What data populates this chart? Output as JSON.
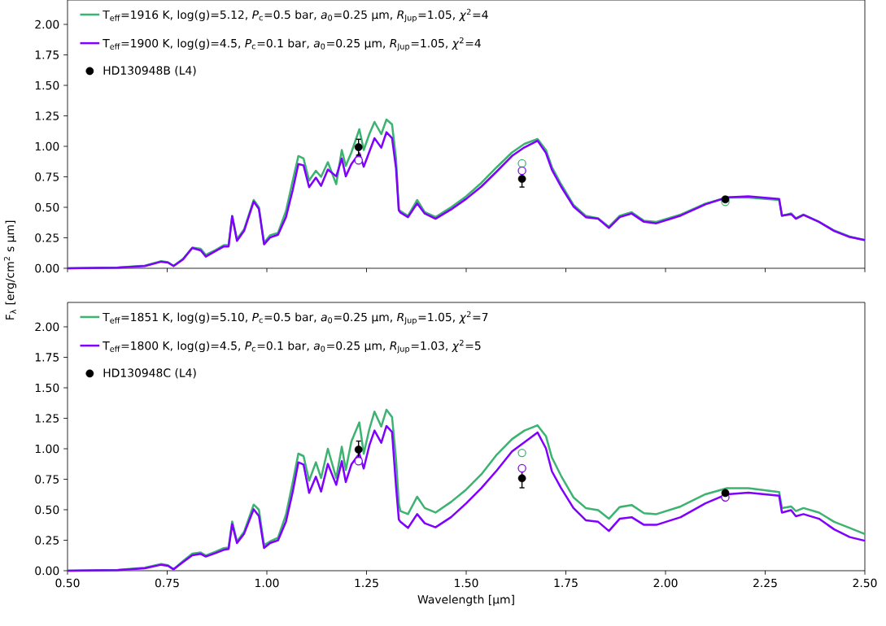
{
  "chart_data": [
    {
      "type": "line",
      "legend": "top left",
      "tick_labels": "y",
      "xlim": [
        0.5,
        2.5
      ],
      "ylim": [
        0,
        2.2
      ],
      "xticks": [
        {
          "value": 0.5,
          "label": null
        },
        {
          "value": 0.75,
          "label": null
        },
        {
          "value": 1.0,
          "label": null
        },
        {
          "value": 1.25,
          "label": null
        },
        {
          "value": 1.5,
          "label": null
        },
        {
          "value": 1.75,
          "label": null
        },
        {
          "value": 2.0,
          "label": null
        },
        {
          "value": 2.25,
          "label": null
        },
        {
          "value": 2.5,
          "label": null
        }
      ],
      "yticks": [
        {
          "value": 0,
          "label": "0.00"
        },
        {
          "value": 0.25,
          "label": "0.25"
        },
        {
          "value": 0.5,
          "label": "0.50"
        },
        {
          "value": 0.75,
          "label": "0.75"
        },
        {
          "value": 1.0,
          "label": "1.00"
        },
        {
          "value": 1.25,
          "label": "1.25"
        },
        {
          "value": 1.5,
          "label": "1.50"
        },
        {
          "value": 1.75,
          "label": "1.75"
        },
        {
          "value": 2.0,
          "label": "2.00"
        }
      ],
      "x": [
        0.5,
        0.626,
        0.694,
        0.735,
        0.752,
        0.766,
        0.79,
        0.813,
        0.834,
        0.847,
        0.871,
        0.892,
        0.904,
        0.913,
        0.925,
        0.943,
        0.967,
        0.98,
        0.993,
        1.008,
        1.028,
        1.048,
        1.065,
        1.079,
        1.092,
        1.106,
        1.123,
        1.136,
        1.153,
        1.174,
        1.188,
        1.198,
        1.212,
        1.232,
        1.243,
        1.257,
        1.27,
        1.287,
        1.3,
        1.314,
        1.324,
        1.331,
        1.335,
        1.354,
        1.377,
        1.396,
        1.423,
        1.462,
        1.5,
        1.538,
        1.577,
        1.615,
        1.646,
        1.679,
        1.7,
        1.715,
        1.738,
        1.769,
        1.8,
        1.831,
        1.858,
        1.885,
        1.915,
        1.946,
        1.977,
        2.038,
        2.1,
        2.154,
        2.208,
        2.285,
        2.292,
        2.315,
        2.327,
        2.346,
        2.385,
        2.423,
        2.462,
        2.5
      ],
      "series": [
        {
          "name": "T$_{eff}$=1916 K, log(g)=5.12, *P*$_{c}$=0.5 bar, *a*$_{0}$=0.25 μm, *R*$_{Jup}$=1.05, *χ*$^{2}$=4",
          "marker": "none",
          "line_style": "solid",
          "color": "#3cb371",
          "values": [
            0,
            0.007,
            0.022,
            0.058,
            0.05,
            0.02,
            0.078,
            0.17,
            0.16,
            0.11,
            0.15,
            0.19,
            0.19,
            0.43,
            0.24,
            0.32,
            0.56,
            0.5,
            0.21,
            0.27,
            0.29,
            0.47,
            0.72,
            0.92,
            0.9,
            0.72,
            0.8,
            0.75,
            0.87,
            0.69,
            0.97,
            0.84,
            0.95,
            1.14,
            0.97,
            1.1,
            1.2,
            1.1,
            1.22,
            1.18,
            0.9,
            0.48,
            0.47,
            0.43,
            0.56,
            0.46,
            0.42,
            0.5,
            0.59,
            0.7,
            0.83,
            0.95,
            1.02,
            1.06,
            0.97,
            0.83,
            0.69,
            0.52,
            0.43,
            0.41,
            0.34,
            0.43,
            0.46,
            0.39,
            0.38,
            0.44,
            0.53,
            0.58,
            0.58,
            0.56,
            0.43,
            0.45,
            0.41,
            0.44,
            0.38,
            0.31,
            0.26,
            0.23
          ]
        },
        {
          "name": "T$_{eff}$=1900 K, log(g)=4.5, *P*$_{c}$=0.1 bar, *a*$_{0}$=0.25 μm, *R*$_{Jup}$=1.05, *χ*$^{2}$=4",
          "marker": "none",
          "line_style": "solid",
          "color": "#8000ff",
          "values": [
            0,
            0.005,
            0.018,
            0.054,
            0.047,
            0.018,
            0.074,
            0.167,
            0.147,
            0.096,
            0.141,
            0.179,
            0.179,
            0.426,
            0.225,
            0.308,
            0.547,
            0.487,
            0.196,
            0.252,
            0.275,
            0.42,
            0.643,
            0.855,
            0.844,
            0.665,
            0.743,
            0.676,
            0.81,
            0.754,
            0.9,
            0.754,
            0.855,
            0.944,
            0.833,
            0.955,
            1.067,
            0.989,
            1.116,
            1.067,
            0.821,
            0.475,
            0.457,
            0.419,
            0.532,
            0.449,
            0.406,
            0.482,
            0.569,
            0.67,
            0.795,
            0.921,
            0.991,
            1.046,
            0.946,
            0.808,
            0.67,
            0.507,
            0.419,
            0.406,
            0.331,
            0.419,
            0.449,
            0.381,
            0.369,
            0.432,
            0.524,
            0.582,
            0.59,
            0.569,
            0.432,
            0.444,
            0.406,
            0.437,
            0.381,
            0.306,
            0.256,
            0.231
          ]
        },
        {
          "type": "scatter",
          "marker": "circle",
          "color": "#3cb371",
          "x": [
            1.64,
            2.15
          ],
          "values": [
            0.86,
            0.545
          ]
        },
        {
          "type": "scatter",
          "marker": "circle",
          "color": "#8000ff",
          "x": [
            1.23,
            1.64
          ],
          "values": [
            0.885,
            0.8
          ]
        },
        {
          "name": "HD130948B (L4)",
          "type": "scatter",
          "marker": "circle",
          "color": "#000000",
          "x": [
            1.23,
            1.64,
            2.15
          ],
          "values": [
            0.993,
            0.733,
            0.565
          ],
          "errors": [
            0.065,
            0.067,
            0.02
          ]
        }
      ]
    },
    {
      "type": "line",
      "legend": "top left",
      "xlabel": "Wavelength [μm]",
      "ylabel": "F$_{λ}$ [erg/cm$^{2}$ s μm]",
      "xlim": [
        0.5,
        2.5
      ],
      "ylim": [
        0,
        2.2
      ],
      "xticks": [
        {
          "value": 0.5,
          "label": "0.50"
        },
        {
          "value": 0.75,
          "label": "0.75"
        },
        {
          "value": 1.0,
          "label": "1.00"
        },
        {
          "value": 1.25,
          "label": "1.25"
        },
        {
          "value": 1.5,
          "label": "1.50"
        },
        {
          "value": 1.75,
          "label": "1.75"
        },
        {
          "value": 2.0,
          "label": "2.00"
        },
        {
          "value": 2.25,
          "label": "2.25"
        },
        {
          "value": 2.5,
          "label": "2.50"
        }
      ],
      "yticks": [
        {
          "value": 0,
          "label": "0.00"
        },
        {
          "value": 0.25,
          "label": "0.25"
        },
        {
          "value": 0.5,
          "label": "0.50"
        },
        {
          "value": 0.75,
          "label": "0.75"
        },
        {
          "value": 1.0,
          "label": "1.00"
        },
        {
          "value": 1.25,
          "label": "1.25"
        },
        {
          "value": 1.5,
          "label": "1.50"
        },
        {
          "value": 1.75,
          "label": "1.75"
        },
        {
          "value": 2.0,
          "label": "2.00"
        }
      ],
      "x": [
        0.5,
        0.626,
        0.694,
        0.735,
        0.752,
        0.766,
        0.79,
        0.813,
        0.834,
        0.847,
        0.871,
        0.892,
        0.904,
        0.913,
        0.925,
        0.943,
        0.967,
        0.98,
        0.993,
        1.008,
        1.028,
        1.048,
        1.065,
        1.079,
        1.092,
        1.106,
        1.123,
        1.136,
        1.153,
        1.174,
        1.188,
        1.198,
        1.212,
        1.232,
        1.243,
        1.257,
        1.27,
        1.287,
        1.3,
        1.314,
        1.324,
        1.331,
        1.335,
        1.354,
        1.377,
        1.396,
        1.423,
        1.462,
        1.5,
        1.538,
        1.577,
        1.615,
        1.646,
        1.679,
        1.7,
        1.715,
        1.738,
        1.769,
        1.8,
        1.831,
        1.858,
        1.885,
        1.915,
        1.946,
        1.977,
        2.038,
        2.1,
        2.154,
        2.208,
        2.285,
        2.292,
        2.315,
        2.327,
        2.346,
        2.385,
        2.423,
        2.462,
        2.5
      ],
      "series": [
        {
          "name": "T$_{eff}$=1851 K, log(g)=5.10, *P*$_{c}$=0.5 bar, *a*$_{0}$=0.25 μm, *R*$_{Jup}$=1.05, *χ*$^{2}$=7",
          "marker": "none",
          "line_style": "solid",
          "color": "#3cb371",
          "values": [
            0,
            0.007,
            0.025,
            0.055,
            0.045,
            0.012,
            0.08,
            0.14,
            0.15,
            0.125,
            0.155,
            0.185,
            0.19,
            0.404,
            0.24,
            0.32,
            0.542,
            0.5,
            0.209,
            0.24,
            0.27,
            0.46,
            0.727,
            0.96,
            0.94,
            0.738,
            0.889,
            0.76,
            1.0,
            0.76,
            1.016,
            0.827,
            1.06,
            1.216,
            0.96,
            1.16,
            1.304,
            1.182,
            1.32,
            1.26,
            0.915,
            0.55,
            0.489,
            0.464,
            0.607,
            0.514,
            0.477,
            0.564,
            0.665,
            0.79,
            0.953,
            1.079,
            1.149,
            1.192,
            1.104,
            0.928,
            0.778,
            0.602,
            0.514,
            0.497,
            0.426,
            0.522,
            0.539,
            0.472,
            0.464,
            0.527,
            0.627,
            0.677,
            0.677,
            0.645,
            0.514,
            0.527,
            0.489,
            0.514,
            0.477,
            0.401,
            0.351,
            0.301
          ]
        },
        {
          "name": "T$_{eff}$=1800 K, log(g)=4.5, *P*$_{c}$=0.1 bar, *a*$_{0}$=0.25 μm, *R*$_{Jup}$=1.03, *χ*$^{2}$=5",
          "marker": "none",
          "line_style": "solid",
          "color": "#8000ff",
          "values": [
            0,
            0.005,
            0.02,
            0.049,
            0.04,
            0.011,
            0.071,
            0.127,
            0.138,
            0.116,
            0.144,
            0.171,
            0.178,
            0.382,
            0.227,
            0.304,
            0.504,
            0.449,
            0.187,
            0.227,
            0.249,
            0.404,
            0.649,
            0.889,
            0.871,
            0.638,
            0.771,
            0.649,
            0.876,
            0.704,
            0.898,
            0.727,
            0.871,
            0.96,
            0.838,
            1.027,
            1.149,
            1.049,
            1.187,
            1.138,
            0.693,
            0.42,
            0.401,
            0.351,
            0.464,
            0.389,
            0.356,
            0.439,
            0.552,
            0.677,
            0.823,
            0.978,
            1.054,
            1.134,
            1.003,
            0.815,
            0.677,
            0.514,
            0.414,
            0.401,
            0.326,
            0.426,
            0.439,
            0.376,
            0.376,
            0.439,
            0.552,
            0.627,
            0.64,
            0.615,
            0.477,
            0.497,
            0.447,
            0.464,
            0.426,
            0.339,
            0.276,
            0.246
          ]
        },
        {
          "type": "scatter",
          "marker": "circle",
          "color": "#3cb371",
          "x": [
            1.64
          ],
          "values": [
            0.966
          ]
        },
        {
          "type": "scatter",
          "marker": "circle",
          "color": "#8000ff",
          "x": [
            1.23,
            1.64,
            2.15
          ],
          "values": [
            0.898,
            0.84,
            0.602
          ]
        },
        {
          "name": "HD130948C (L4)",
          "type": "scatter",
          "marker": "circle",
          "color": "#000000",
          "x": [
            1.23,
            1.64,
            2.15
          ],
          "values": [
            0.993,
            0.758,
            0.637
          ],
          "errors": [
            0.07,
            0.078,
            0.015
          ]
        }
      ]
    }
  ]
}
